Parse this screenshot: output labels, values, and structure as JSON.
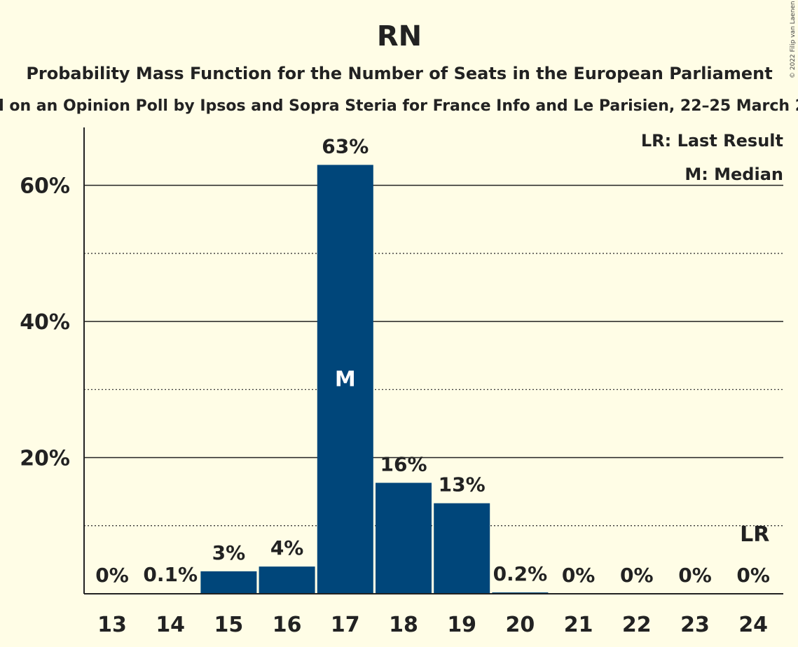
{
  "chart_data": {
    "type": "bar",
    "title": "RN",
    "subtitle": "Probability Mass Function for the Number of Seats in the European Parliament",
    "subtitle2": "d on an Opinion Poll by Ipsos and Sopra Steria for France Info and Le Parisien, 22–25 March 2",
    "categories": [
      "13",
      "14",
      "15",
      "16",
      "17",
      "18",
      "19",
      "20",
      "21",
      "22",
      "23",
      "24"
    ],
    "values": [
      0,
      0.1,
      3.3,
      4.0,
      63,
      16.3,
      13.3,
      0.2,
      0,
      0,
      0,
      0
    ],
    "labels": [
      "0%",
      "0.1%",
      "3%",
      "4%",
      "63%",
      "16%",
      "13%",
      "0.2%",
      "0%",
      "0%",
      "0%",
      "0%"
    ],
    "y_ticks": [
      {
        "value": 20,
        "label": "20%"
      },
      {
        "value": 40,
        "label": "40%"
      },
      {
        "value": 60,
        "label": "60%"
      }
    ],
    "y_minor_gridlines": [
      10,
      30,
      50
    ],
    "ylim": [
      0,
      68.5
    ],
    "grid": true,
    "median": {
      "category": "17",
      "label": "M"
    },
    "last_result": {
      "category": "24",
      "label": "LR"
    },
    "legend": {
      "placement": "top-right",
      "items": [
        "LR: Last Result",
        "M: Median"
      ]
    },
    "copyright": "© 2022 Filip van Laenen",
    "bar_color": "#00467A",
    "background": "#FFFDE6"
  }
}
